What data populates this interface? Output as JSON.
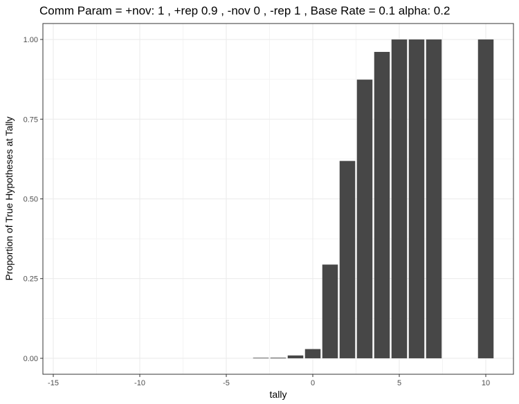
{
  "chart_data": {
    "type": "bar",
    "title": "Comm Param = +nov: 1 , +rep 0.9 , -nov 0 , -rep 1 , Base Rate =  0.1 alpha: 0.2",
    "xlabel": "tally",
    "ylabel": "Proportion of True Hypotheses at Tally",
    "xlim": [
      -15.6,
      11.6
    ],
    "ylim": [
      -0.05,
      1.05
    ],
    "x_ticks": [
      -15,
      -10,
      -5,
      0,
      5,
      10
    ],
    "x_tick_labels": [
      "-15",
      "-10",
      "-5",
      "0",
      "5",
      "10"
    ],
    "y_ticks": [
      0,
      0.25,
      0.5,
      0.75,
      1
    ],
    "y_tick_labels": [
      "0.00",
      "0.25",
      "0.50",
      "0.75",
      "1.00"
    ],
    "grid": true,
    "theme": "bw",
    "bar_color": "#474747",
    "points": [
      {
        "x": -3,
        "y": 0.001
      },
      {
        "x": -2,
        "y": 0.002
      },
      {
        "x": -1,
        "y": 0.009
      },
      {
        "x": 0,
        "y": 0.029
      },
      {
        "x": 1,
        "y": 0.294
      },
      {
        "x": 2,
        "y": 0.619
      },
      {
        "x": 3,
        "y": 0.874
      },
      {
        "x": 4,
        "y": 0.961
      },
      {
        "x": 5,
        "y": 1.0
      },
      {
        "x": 6,
        "y": 1.0
      },
      {
        "x": 7,
        "y": 1.0
      },
      {
        "x": 10,
        "y": 1.0
      }
    ]
  }
}
